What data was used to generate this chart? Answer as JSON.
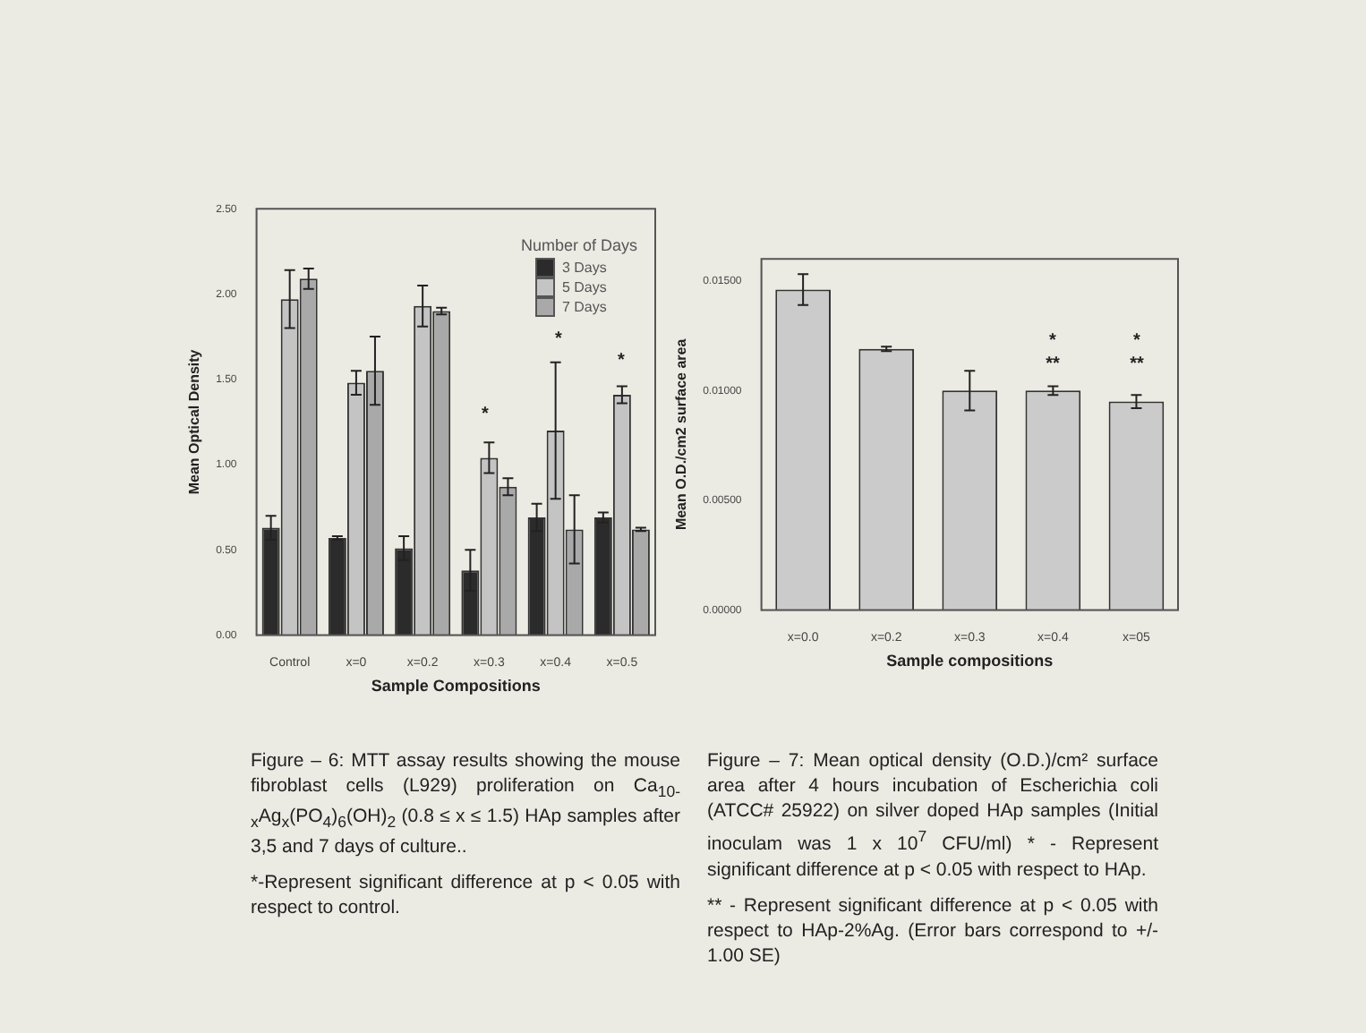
{
  "chart_data": [
    {
      "type": "bar",
      "xlabel": "Sample Compositions",
      "ylabel": "Mean Optical Density",
      "legend_title": "Number of Days",
      "legend": "top right",
      "categories": [
        "Control",
        "x=0",
        "x=0.2",
        "x=0.3",
        "x=0.4",
        "x=0.5"
      ],
      "series": [
        {
          "name": "3 Days",
          "color": "#2b2b2b",
          "values": [
            0.63,
            0.57,
            0.51,
            0.38,
            0.69,
            0.69
          ],
          "errors": [
            0.07,
            0.01,
            0.07,
            0.12,
            0.08,
            0.03
          ]
        },
        {
          "name": "5 Days",
          "color": "#c4c4c4",
          "values": [
            1.97,
            1.48,
            1.93,
            1.04,
            1.2,
            1.41
          ],
          "errors": [
            0.17,
            0.07,
            0.12,
            0.09,
            0.4,
            0.05
          ]
        },
        {
          "name": "7 Days",
          "color": "#a9a9a9",
          "values": [
            2.09,
            1.55,
            1.9,
            0.87,
            0.62,
            0.62
          ],
          "errors": [
            0.06,
            0.2,
            0.02,
            0.05,
            0.2,
            0.01
          ]
        }
      ],
      "ylim": [
        0,
        2.5
      ],
      "yticks": [
        {
          "value": 0,
          "label": "0.00"
        },
        {
          "value": 0.5,
          "label": "0.50"
        },
        {
          "value": 1,
          "label": "1.00"
        },
        {
          "value": 1.5,
          "label": "1.50"
        },
        {
          "value": 2,
          "label": "2.00"
        },
        {
          "value": 2.5,
          "label": "2.50"
        }
      ],
      "annotations": [
        "*",
        "*",
        "*",
        "Figure – 6: MTT assay results showing the mouse fibroblast cells (L929) proliferation on Ca$_{10-x}$Ag$_{x}$(PO$_{4}$)$_{6}$(OH)$_{2}$ (0.8 ≤ x ≤ 1.5) HAp samples after 3,5 and 7 days of culture..",
        "*-Represent significant difference at p < 0.05 with respect to control."
      ]
    },
    {
      "type": "bar",
      "xlabel": "Sample compositions",
      "ylabel": "Mean O.D./cm2 surface area",
      "categories": [
        "x=0.0",
        "x=0.2",
        "x=0.3",
        "x=0.4",
        "x=05"
      ],
      "values": [
        0.0146,
        0.0119,
        0.01,
        0.01,
        0.0095
      ],
      "errors": [
        0.0007,
        0.0001,
        0.0009,
        0.0002,
        0.0003
      ],
      "color": "#cbcbcb",
      "ylim": [
        0,
        0.016
      ],
      "yticks": [
        {
          "value": 0,
          "label": "0.00000"
        },
        {
          "value": 0.005,
          "label": "0.00500"
        },
        {
          "value": 0.01,
          "label": "0.01000"
        },
        {
          "value": 0.015,
          "label": "0.01500"
        }
      ],
      "annotations": [
        "*",
        "**",
        "*",
        "**",
        "Figure – 7: Mean optical density (O.D.)/cm² surface area after 4 hours incubation of Escherichia coli (ATCC# 25922) on silver doped HAp samples (Initial inoculam was 1 x 10$^{7}$ CFU/ml) * - Represent significant difference at p < 0.05 with respect to HAp.",
        "** - Represent significant difference at p < 0.05 with respect to HAp-2%Ag. (Error bars correspond to +/- 1.00 SE)"
      ]
    }
  ]
}
